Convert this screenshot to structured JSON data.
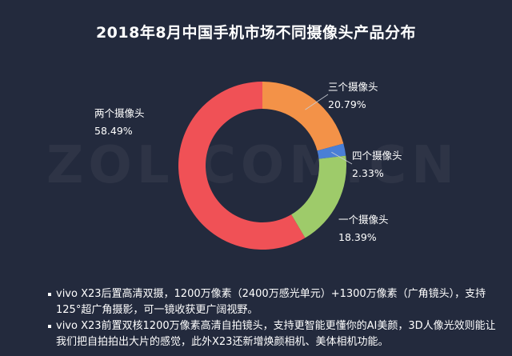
{
  "chart_data": {
    "type": "pie",
    "title": "2018年8月中国手机市场不同摄像头产品分布",
    "slices": [
      {
        "name": "三个摄像头",
        "value": 20.79,
        "label": "20.79%",
        "color": "#f39248"
      },
      {
        "name": "四个摄像头",
        "value": 2.33,
        "label": "2.33%",
        "color": "#4a7fd6"
      },
      {
        "name": "一个摄像头",
        "value": 18.39,
        "label": "18.39%",
        "color": "#9ecb6a"
      },
      {
        "name": "两个摄像头",
        "value": 58.49,
        "label": "58.49%",
        "color": "#f05156"
      }
    ],
    "start_angle_deg": 0,
    "direction": "clockwise",
    "donut": true
  },
  "watermark": "ZOL.COM.CN",
  "notes": [
    "vivo X23后置高清双摄，1200万像素（2400万感光单元）+1300万像素（广角镜头），支持125°超广角摄影，可一镜收获更广阔视野。",
    "vivo X23前置双核1200万像素高清自拍镜头，支持更智能更懂你的AI美颜，3D人像光效则能让我们把自拍拍出大片的感觉，此外X23还新增焕颜相机、美体相机功能。"
  ]
}
